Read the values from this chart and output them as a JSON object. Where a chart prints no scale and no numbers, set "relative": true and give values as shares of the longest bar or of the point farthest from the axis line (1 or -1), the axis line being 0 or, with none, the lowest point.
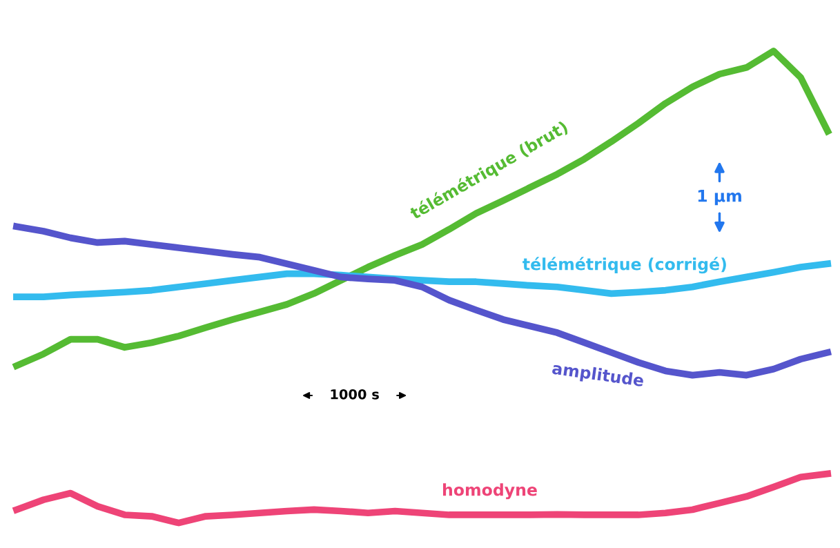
{
  "chart_data": {
    "type": "line",
    "relative": true,
    "legend": false,
    "categories": [
      null,
      null,
      null,
      null,
      null,
      null,
      null,
      null,
      null,
      null,
      null,
      null,
      null,
      null,
      null,
      null,
      null,
      null,
      null,
      null,
      null,
      null,
      null,
      null,
      null,
      null,
      null,
      null,
      null,
      null,
      null
    ],
    "series": [
      {
        "name": "télémétrique (brut)",
        "color": "#55bb33",
        "values": [
          0.333,
          0.358,
          0.389,
          0.389,
          0.372,
          0.382,
          0.396,
          0.414,
          0.431,
          0.447,
          0.463,
          0.486,
          0.514,
          0.542,
          0.567,
          0.59,
          0.622,
          0.656,
          0.683,
          0.711,
          0.739,
          0.771,
          0.808,
          0.847,
          0.889,
          0.924,
          0.951,
          0.965,
          1.0,
          0.944,
          0.83
        ]
      },
      {
        "name": "télémétrique (corrigé)",
        "color": "#33bbee",
        "values": [
          0.479,
          0.479,
          0.483,
          0.486,
          0.489,
          0.493,
          0.5,
          0.507,
          0.514,
          0.521,
          0.528,
          0.528,
          0.525,
          0.521,
          0.517,
          0.514,
          0.511,
          0.511,
          0.507,
          0.503,
          0.5,
          0.493,
          0.486,
          0.489,
          0.493,
          0.5,
          0.511,
          0.521,
          0.531,
          0.542,
          0.549
        ]
      },
      {
        "name": "amplitude",
        "color": "#5555cc",
        "values": [
          0.628,
          0.618,
          0.604,
          0.594,
          0.597,
          0.59,
          0.583,
          0.576,
          0.569,
          0.563,
          0.549,
          0.535,
          0.521,
          0.517,
          0.514,
          0.5,
          0.472,
          0.451,
          0.431,
          0.417,
          0.403,
          0.382,
          0.361,
          0.34,
          0.322,
          0.313,
          0.319,
          0.313,
          0.326,
          0.347,
          0.361
        ]
      },
      {
        "name": "homodyne",
        "color": "#ee4477",
        "values": [
          0.028,
          0.049,
          0.063,
          0.035,
          0.017,
          0.014,
          0.0,
          0.014,
          0.017,
          0.021,
          0.025,
          0.028,
          0.025,
          0.021,
          0.025,
          0.021,
          0.017,
          0.017,
          0.017,
          0.017,
          0.018,
          0.017,
          0.017,
          0.017,
          0.021,
          0.028,
          0.042,
          0.056,
          0.076,
          0.097,
          0.104
        ]
      }
    ],
    "annotations": [
      "1 µm",
      "1000 s"
    ]
  }
}
